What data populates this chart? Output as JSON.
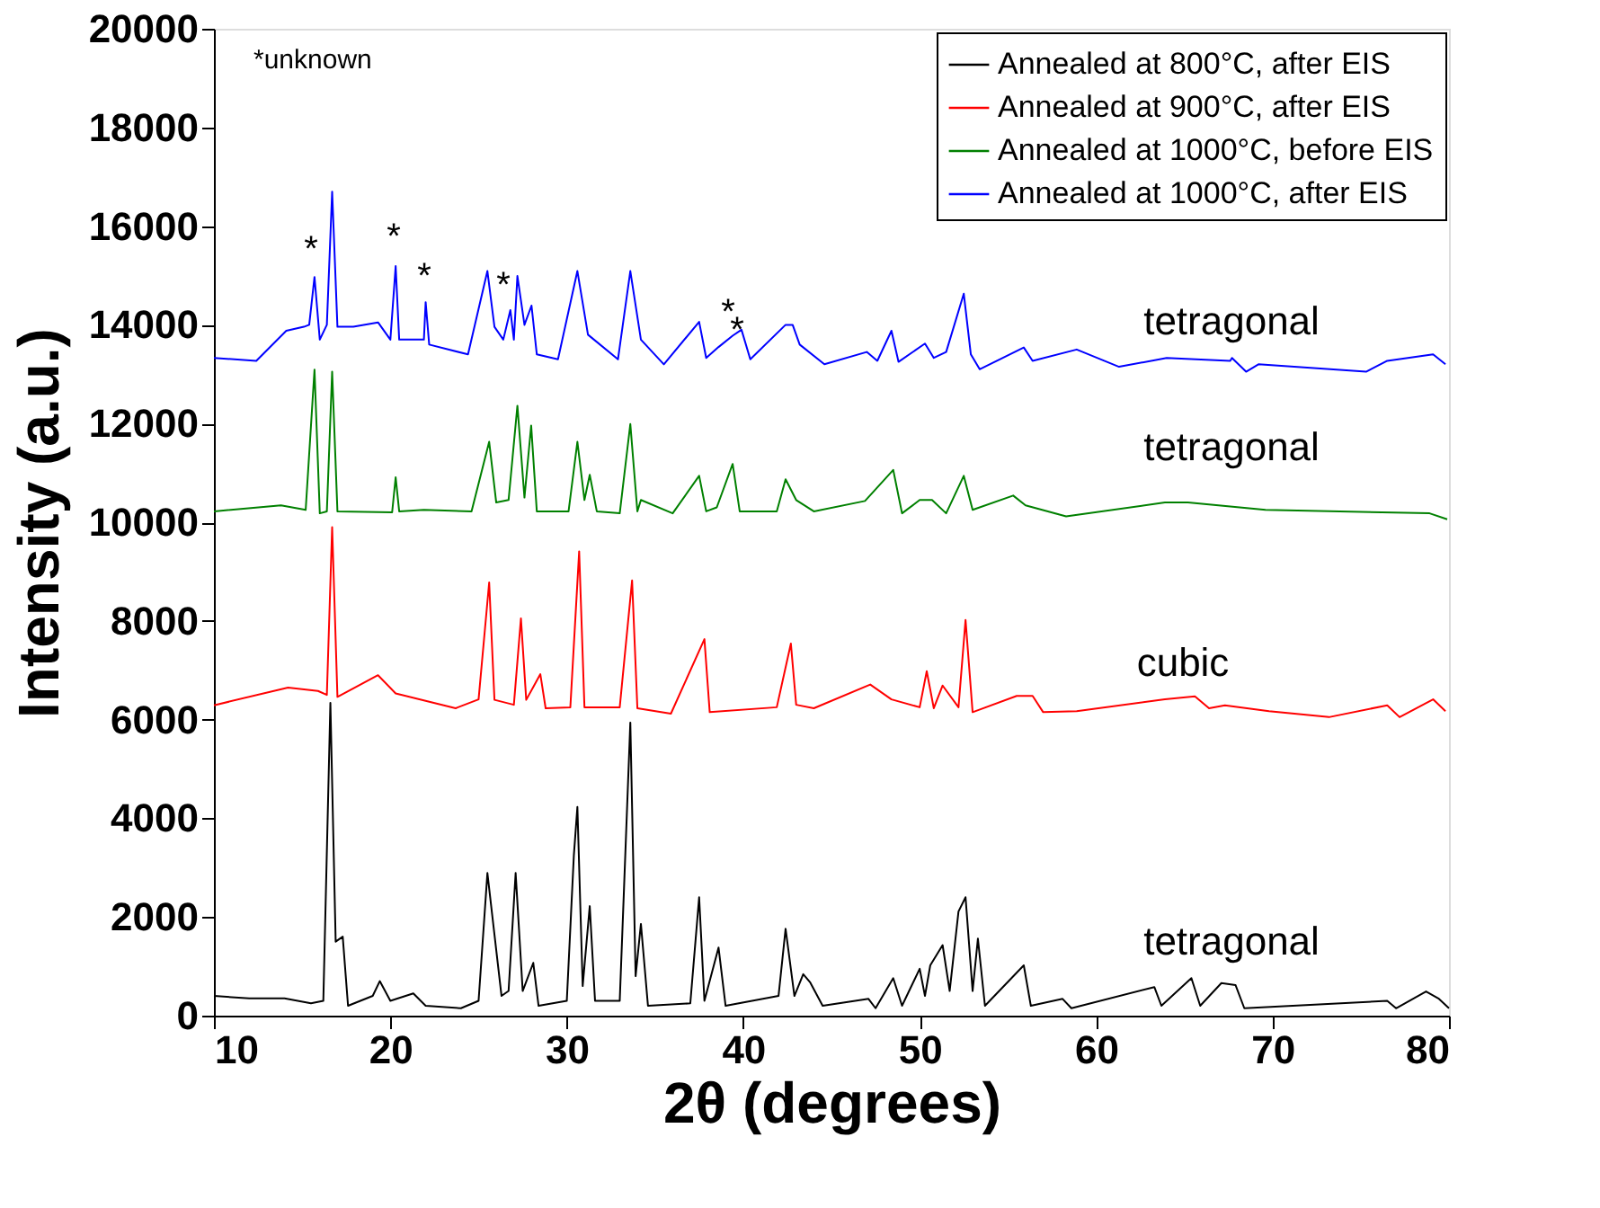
{
  "chart_data": {
    "type": "line",
    "xlabel": "2θ (degrees)",
    "ylabel": "Intensity (a.u.)",
    "xlim": [
      10,
      80
    ],
    "xticks": [
      10,
      20,
      30,
      40,
      50,
      60,
      70,
      80
    ],
    "ylim": [
      0,
      20000
    ],
    "yticks": [
      0,
      2000,
      4000,
      6000,
      8000,
      10000,
      12000,
      14000,
      16000,
      18000,
      20000
    ],
    "legend": "top right",
    "series": [
      {
        "name": "Annealed at 800°C, after EIS",
        "color": "#000000",
        "x": [
          10,
          12,
          14,
          15.5,
          16.2,
          16.6,
          16.9,
          17.3,
          17.6,
          19,
          19.4,
          20,
          21.3,
          22,
          24,
          25,
          25.5,
          25.9,
          26.3,
          26.7,
          27.1,
          27.5,
          28.1,
          28.4,
          30,
          30.4,
          30.6,
          30.9,
          31.3,
          31.6,
          33,
          33.6,
          33.9,
          34.2,
          34.6,
          37,
          37.5,
          37.8,
          38.6,
          39,
          42,
          42.4,
          42.9,
          43.4,
          43.8,
          44.5,
          47.1,
          47.5,
          48.5,
          49,
          50,
          50.3,
          50.6,
          51.3,
          51.7,
          52.2,
          52.6,
          53,
          53.3,
          53.7,
          55.9,
          56.3,
          58.1,
          58.6,
          63.3,
          63.7,
          65.4,
          65.9,
          67.1,
          67.9,
          68.4,
          76.5,
          77,
          78.7,
          79.4,
          80
        ],
        "values": [
          400,
          350,
          350,
          250,
          300,
          6340,
          1500,
          1600,
          200,
          400,
          700,
          300,
          450,
          200,
          150,
          300,
          2890,
          1640,
          400,
          500,
          2890,
          500,
          1070,
          200,
          300,
          3250,
          4230,
          600,
          2220,
          300,
          300,
          5940,
          800,
          1860,
          200,
          250,
          2400,
          300,
          1380,
          200,
          400,
          1760,
          400,
          840,
          670,
          200,
          340,
          150,
          760,
          200,
          950,
          400,
          1020,
          1430,
          500,
          2110,
          2400,
          500,
          1560,
          200,
          1020,
          200,
          340,
          150,
          580,
          200,
          760,
          200,
          660,
          620,
          150,
          300,
          150,
          490,
          350,
          150
        ]
      },
      {
        "name": "Annealed at 900°C, after EIS",
        "color": "#ff0000",
        "x": [
          10,
          14.2,
          15.9,
          16.4,
          16.7,
          17,
          19.3,
          20.3,
          23.7,
          25,
          25.6,
          25.9,
          27,
          27.4,
          27.7,
          28.5,
          28.8,
          30.2,
          30.7,
          31,
          33,
          33.7,
          34,
          35.9,
          37.8,
          38.1,
          41.9,
          42.7,
          43,
          44,
          47.2,
          48.4,
          50,
          50.4,
          50.8,
          51.3,
          52.2,
          52.6,
          53,
          55.5,
          56.4,
          57,
          58.9,
          63.9,
          65.6,
          66.4,
          67.3,
          69.8,
          73.2,
          76.5,
          77.2,
          79.1,
          79.8
        ],
        "values": [
          6290,
          6650,
          6580,
          6500,
          9900,
          6460,
          6900,
          6530,
          6230,
          6410,
          8780,
          6400,
          6300,
          8050,
          6400,
          6920,
          6230,
          6250,
          9410,
          6250,
          6250,
          8820,
          6230,
          6120,
          7630,
          6150,
          6250,
          7540,
          6300,
          6230,
          6710,
          6410,
          6250,
          6980,
          6230,
          6690,
          6250,
          8020,
          6150,
          6480,
          6480,
          6150,
          6170,
          6410,
          6470,
          6230,
          6290,
          6170,
          6050,
          6290,
          6050,
          6410,
          6170
        ]
      },
      {
        "name": "Annealed at 1000°C, before EIS",
        "color": "#008000",
        "x": [
          10,
          13.8,
          15.2,
          15.7,
          16,
          16.4,
          16.7,
          17,
          20.1,
          20.3,
          20.5,
          21.9,
          24.6,
          25.6,
          26,
          26.7,
          27.2,
          27.6,
          27.98,
          28.3,
          30.1,
          30.6,
          31,
          31.3,
          31.7,
          33,
          33.6,
          34,
          34.2,
          36,
          37.5,
          37.9,
          38.5,
          39.4,
          39.8,
          41.9,
          42.4,
          43,
          44,
          46.9,
          48.5,
          49,
          50,
          50.7,
          51.5,
          52.5,
          53,
          55.3,
          56,
          58.3,
          63.9,
          65.2,
          69.6,
          78.9,
          79.9
        ],
        "values": [
          10220,
          10340,
          10250,
          13090,
          10180,
          10220,
          13050,
          10220,
          10200,
          10910,
          10220,
          10250,
          10220,
          11630,
          10400,
          10450,
          12360,
          10500,
          11960,
          10220,
          10220,
          11630,
          10450,
          10960,
          10220,
          10180,
          11990,
          10220,
          10450,
          10180,
          10940,
          10220,
          10300,
          11180,
          10220,
          10220,
          10870,
          10450,
          10220,
          10430,
          11060,
          10180,
          10450,
          10450,
          10180,
          10940,
          10250,
          10540,
          10340,
          10120,
          10400,
          10400,
          10250,
          10180,
          10060
        ]
      },
      {
        "name": "Annealed at 1000°C, after EIS",
        "color": "#0000ff",
        "x": [
          10,
          12.4,
          14.1,
          15.1,
          15.4,
          15.7,
          16,
          16.4,
          16.7,
          17,
          17.9,
          19.3,
          20,
          20.3,
          20.5,
          21.9,
          22,
          22.2,
          24.4,
          25.5,
          25.9,
          26.4,
          26.8,
          27,
          27.2,
          27.6,
          28,
          28.3,
          29.5,
          30.6,
          31.2,
          32.9,
          33.6,
          34.2,
          35.5,
          37.5,
          37.9,
          38.6,
          39.4,
          39.9,
          40.4,
          42.4,
          42.8,
          43.2,
          44.6,
          47,
          47.6,
          48.4,
          48.8,
          50.3,
          50.8,
          51.5,
          52.5,
          52.9,
          53.4,
          55.9,
          56.4,
          58.9,
          61.3,
          64,
          67.6,
          67.7,
          68.5,
          69.2,
          75.3,
          76.5,
          79.1,
          79.8
        ],
        "values": [
          13330,
          13270,
          13880,
          13960,
          14000,
          14970,
          13700,
          14000,
          16700,
          13960,
          13960,
          14050,
          13700,
          15190,
          13700,
          13700,
          14460,
          13600,
          13400,
          15090,
          13960,
          13700,
          14300,
          13700,
          14990,
          14000,
          14390,
          13400,
          13300,
          15090,
          13800,
          13300,
          15090,
          13700,
          13200,
          14060,
          13330,
          13550,
          13780,
          13900,
          13300,
          14000,
          14000,
          13600,
          13200,
          13450,
          13270,
          13880,
          13250,
          13620,
          13330,
          13450,
          14630,
          13400,
          13100,
          13540,
          13270,
          13500,
          13150,
          13330,
          13270,
          13330,
          13050,
          13200,
          13050,
          13270,
          13400,
          13200
        ]
      }
    ],
    "annotations": [
      "*unknown",
      "*",
      "*",
      "*",
      "*",
      "*",
      "*",
      "tetragonal",
      "tetragonal",
      "cubic",
      "tetragonal"
    ]
  }
}
